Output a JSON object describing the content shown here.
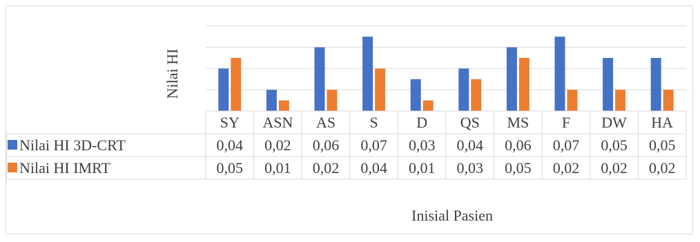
{
  "chart_data": {
    "type": "bar",
    "title": "",
    "xlabel": "Inisial Pasien",
    "ylabel": "Nilai HI",
    "categories": [
      "SY",
      "ASN",
      "AS",
      "S",
      "D",
      "QS",
      "MS",
      "F",
      "DW",
      "HA"
    ],
    "series": [
      {
        "name": "Nilai HI 3D-CRT",
        "color": "#4472c4",
        "values": [
          0.04,
          0.02,
          0.06,
          0.07,
          0.03,
          0.04,
          0.06,
          0.07,
          0.05,
          0.05
        ],
        "labels": [
          "0,04",
          "0,02",
          "0,06",
          "0,07",
          "0,03",
          "0,04",
          "0,06",
          "0,07",
          "0,05",
          "0,05"
        ]
      },
      {
        "name": "Nilai HI IMRT",
        "color": "#ed7d31",
        "values": [
          0.05,
          0.01,
          0.02,
          0.04,
          0.01,
          0.03,
          0.05,
          0.02,
          0.02,
          0.02
        ],
        "labels": [
          "0,05",
          "0,01",
          "0,02",
          "0,04",
          "0,01",
          "0,03",
          "0,05",
          "0,02",
          "0,02",
          "0,02"
        ]
      }
    ],
    "ylim": [
      0,
      0.08
    ],
    "gridlines": true,
    "legend": "data-table",
    "data_table": true
  }
}
